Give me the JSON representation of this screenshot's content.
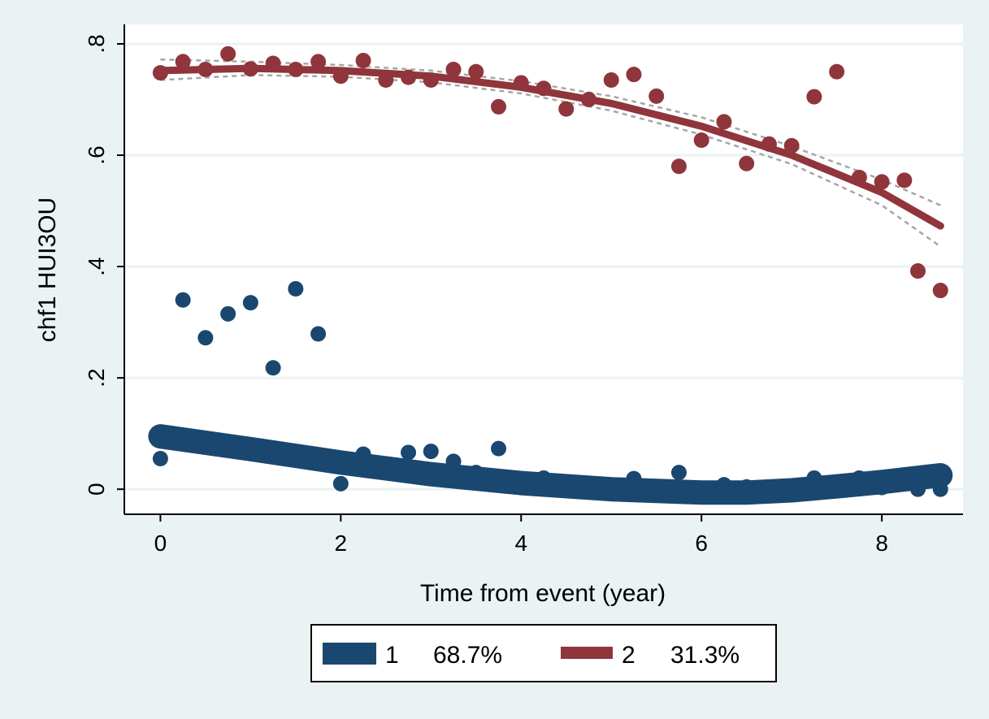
{
  "chart_data": {
    "type": "scatter",
    "xlabel": "Time from event (year)",
    "ylabel": "chf1 HUI3OU",
    "xlim": [
      -0.4,
      8.9
    ],
    "ylim": [
      -0.045,
      0.835
    ],
    "xticks": [
      "0",
      "2",
      "4",
      "6",
      "8"
    ],
    "yticks": [
      "0",
      ".2",
      ".4",
      ".6",
      ".8"
    ],
    "xtick_values": [
      0,
      2,
      4,
      6,
      8
    ],
    "ytick_values": [
      0,
      0.2,
      0.4,
      0.6,
      0.8
    ],
    "grid": true,
    "legend_position": "bottom",
    "series": [
      {
        "name": "1",
        "share": "68.7%",
        "color": "#1a476f",
        "points": [
          [
            0,
            0.055
          ],
          [
            0.25,
            0.34
          ],
          [
            0.5,
            0.272
          ],
          [
            0.75,
            0.315
          ],
          [
            1.0,
            0.335
          ],
          [
            1.25,
            0.218
          ],
          [
            1.5,
            0.36
          ],
          [
            1.75,
            0.279
          ],
          [
            2.0,
            0.01
          ],
          [
            2.25,
            0.063
          ],
          [
            2.75,
            0.066
          ],
          [
            3.0,
            0.068
          ],
          [
            3.25,
            0.05
          ],
          [
            3.5,
            0.03
          ],
          [
            3.75,
            0.073
          ],
          [
            4.0,
            0.005
          ],
          [
            4.25,
            0.02
          ],
          [
            5.25,
            0.019
          ],
          [
            5.75,
            0.03
          ],
          [
            6.25,
            0.008
          ],
          [
            6.5,
            0.004
          ],
          [
            7.25,
            0.02
          ],
          [
            7.75,
            0.02
          ],
          [
            8.0,
            0.003
          ],
          [
            8.4,
            0.0
          ],
          [
            8.65,
            0.0
          ]
        ],
        "fit": [
          [
            0,
            0.095
          ],
          [
            1,
            0.072
          ],
          [
            2,
            0.048
          ],
          [
            3,
            0.027
          ],
          [
            4,
            0.011
          ],
          [
            5,
            0.0
          ],
          [
            6,
            -0.006
          ],
          [
            6.5,
            -0.006
          ],
          [
            7,
            -0.002
          ],
          [
            7.5,
            0.005
          ],
          [
            8,
            0.013
          ],
          [
            8.65,
            0.025
          ]
        ],
        "ci_upper": [
          [
            0,
            0.108
          ],
          [
            1,
            0.082
          ],
          [
            2,
            0.057
          ],
          [
            3,
            0.035
          ],
          [
            4,
            0.018
          ],
          [
            5,
            0.007
          ],
          [
            6,
            0.001
          ],
          [
            7,
            0.007
          ],
          [
            8,
            0.028
          ],
          [
            8.65,
            0.045
          ]
        ],
        "ci_lower": [
          [
            0,
            0.083
          ],
          [
            1,
            0.062
          ],
          [
            2,
            0.04
          ],
          [
            3,
            0.021
          ],
          [
            4,
            0.005
          ],
          [
            5,
            -0.006
          ],
          [
            6,
            -0.013
          ],
          [
            7,
            -0.01
          ],
          [
            8,
            0.0
          ],
          [
            8.65,
            0.005
          ]
        ]
      },
      {
        "name": "2",
        "share": "31.3%",
        "color": "#90353b",
        "points": [
          [
            0,
            0.748
          ],
          [
            0.25,
            0.768
          ],
          [
            0.5,
            0.754
          ],
          [
            0.75,
            0.782
          ],
          [
            1.0,
            0.755
          ],
          [
            1.25,
            0.765
          ],
          [
            1.5,
            0.754
          ],
          [
            1.75,
            0.768
          ],
          [
            2.0,
            0.742
          ],
          [
            2.25,
            0.77
          ],
          [
            2.5,
            0.735
          ],
          [
            2.75,
            0.74
          ],
          [
            3.0,
            0.735
          ],
          [
            3.25,
            0.754
          ],
          [
            3.5,
            0.75
          ],
          [
            3.75,
            0.687
          ],
          [
            4.0,
            0.73
          ],
          [
            4.25,
            0.72
          ],
          [
            4.5,
            0.683
          ],
          [
            4.75,
            0.7
          ],
          [
            5.0,
            0.735
          ],
          [
            5.25,
            0.745
          ],
          [
            5.5,
            0.706
          ],
          [
            5.75,
            0.58
          ],
          [
            6.0,
            0.627
          ],
          [
            6.25,
            0.66
          ],
          [
            6.5,
            0.585
          ],
          [
            6.75,
            0.62
          ],
          [
            7.0,
            0.617
          ],
          [
            7.25,
            0.705
          ],
          [
            7.5,
            0.75
          ],
          [
            7.75,
            0.56
          ],
          [
            8.0,
            0.552
          ],
          [
            8.25,
            0.555
          ],
          [
            8.4,
            0.392
          ],
          [
            8.65,
            0.357
          ]
        ],
        "fit": [
          [
            0,
            0.752
          ],
          [
            1,
            0.756
          ],
          [
            2,
            0.752
          ],
          [
            3,
            0.742
          ],
          [
            4,
            0.722
          ],
          [
            5,
            0.693
          ],
          [
            6,
            0.652
          ],
          [
            7,
            0.6
          ],
          [
            8,
            0.533
          ],
          [
            8.65,
            0.473
          ]
        ],
        "ci_upper": [
          [
            0,
            0.772
          ],
          [
            1,
            0.768
          ],
          [
            2,
            0.762
          ],
          [
            3,
            0.752
          ],
          [
            4,
            0.733
          ],
          [
            5,
            0.706
          ],
          [
            6,
            0.668
          ],
          [
            7,
            0.616
          ],
          [
            8,
            0.556
          ],
          [
            8.65,
            0.51
          ]
        ],
        "ci_lower": [
          [
            0,
            0.735
          ],
          [
            1,
            0.744
          ],
          [
            2,
            0.741
          ],
          [
            3,
            0.731
          ],
          [
            4,
            0.711
          ],
          [
            5,
            0.68
          ],
          [
            6,
            0.637
          ],
          [
            7,
            0.584
          ],
          [
            8,
            0.51
          ],
          [
            8.65,
            0.436
          ]
        ]
      }
    ]
  }
}
